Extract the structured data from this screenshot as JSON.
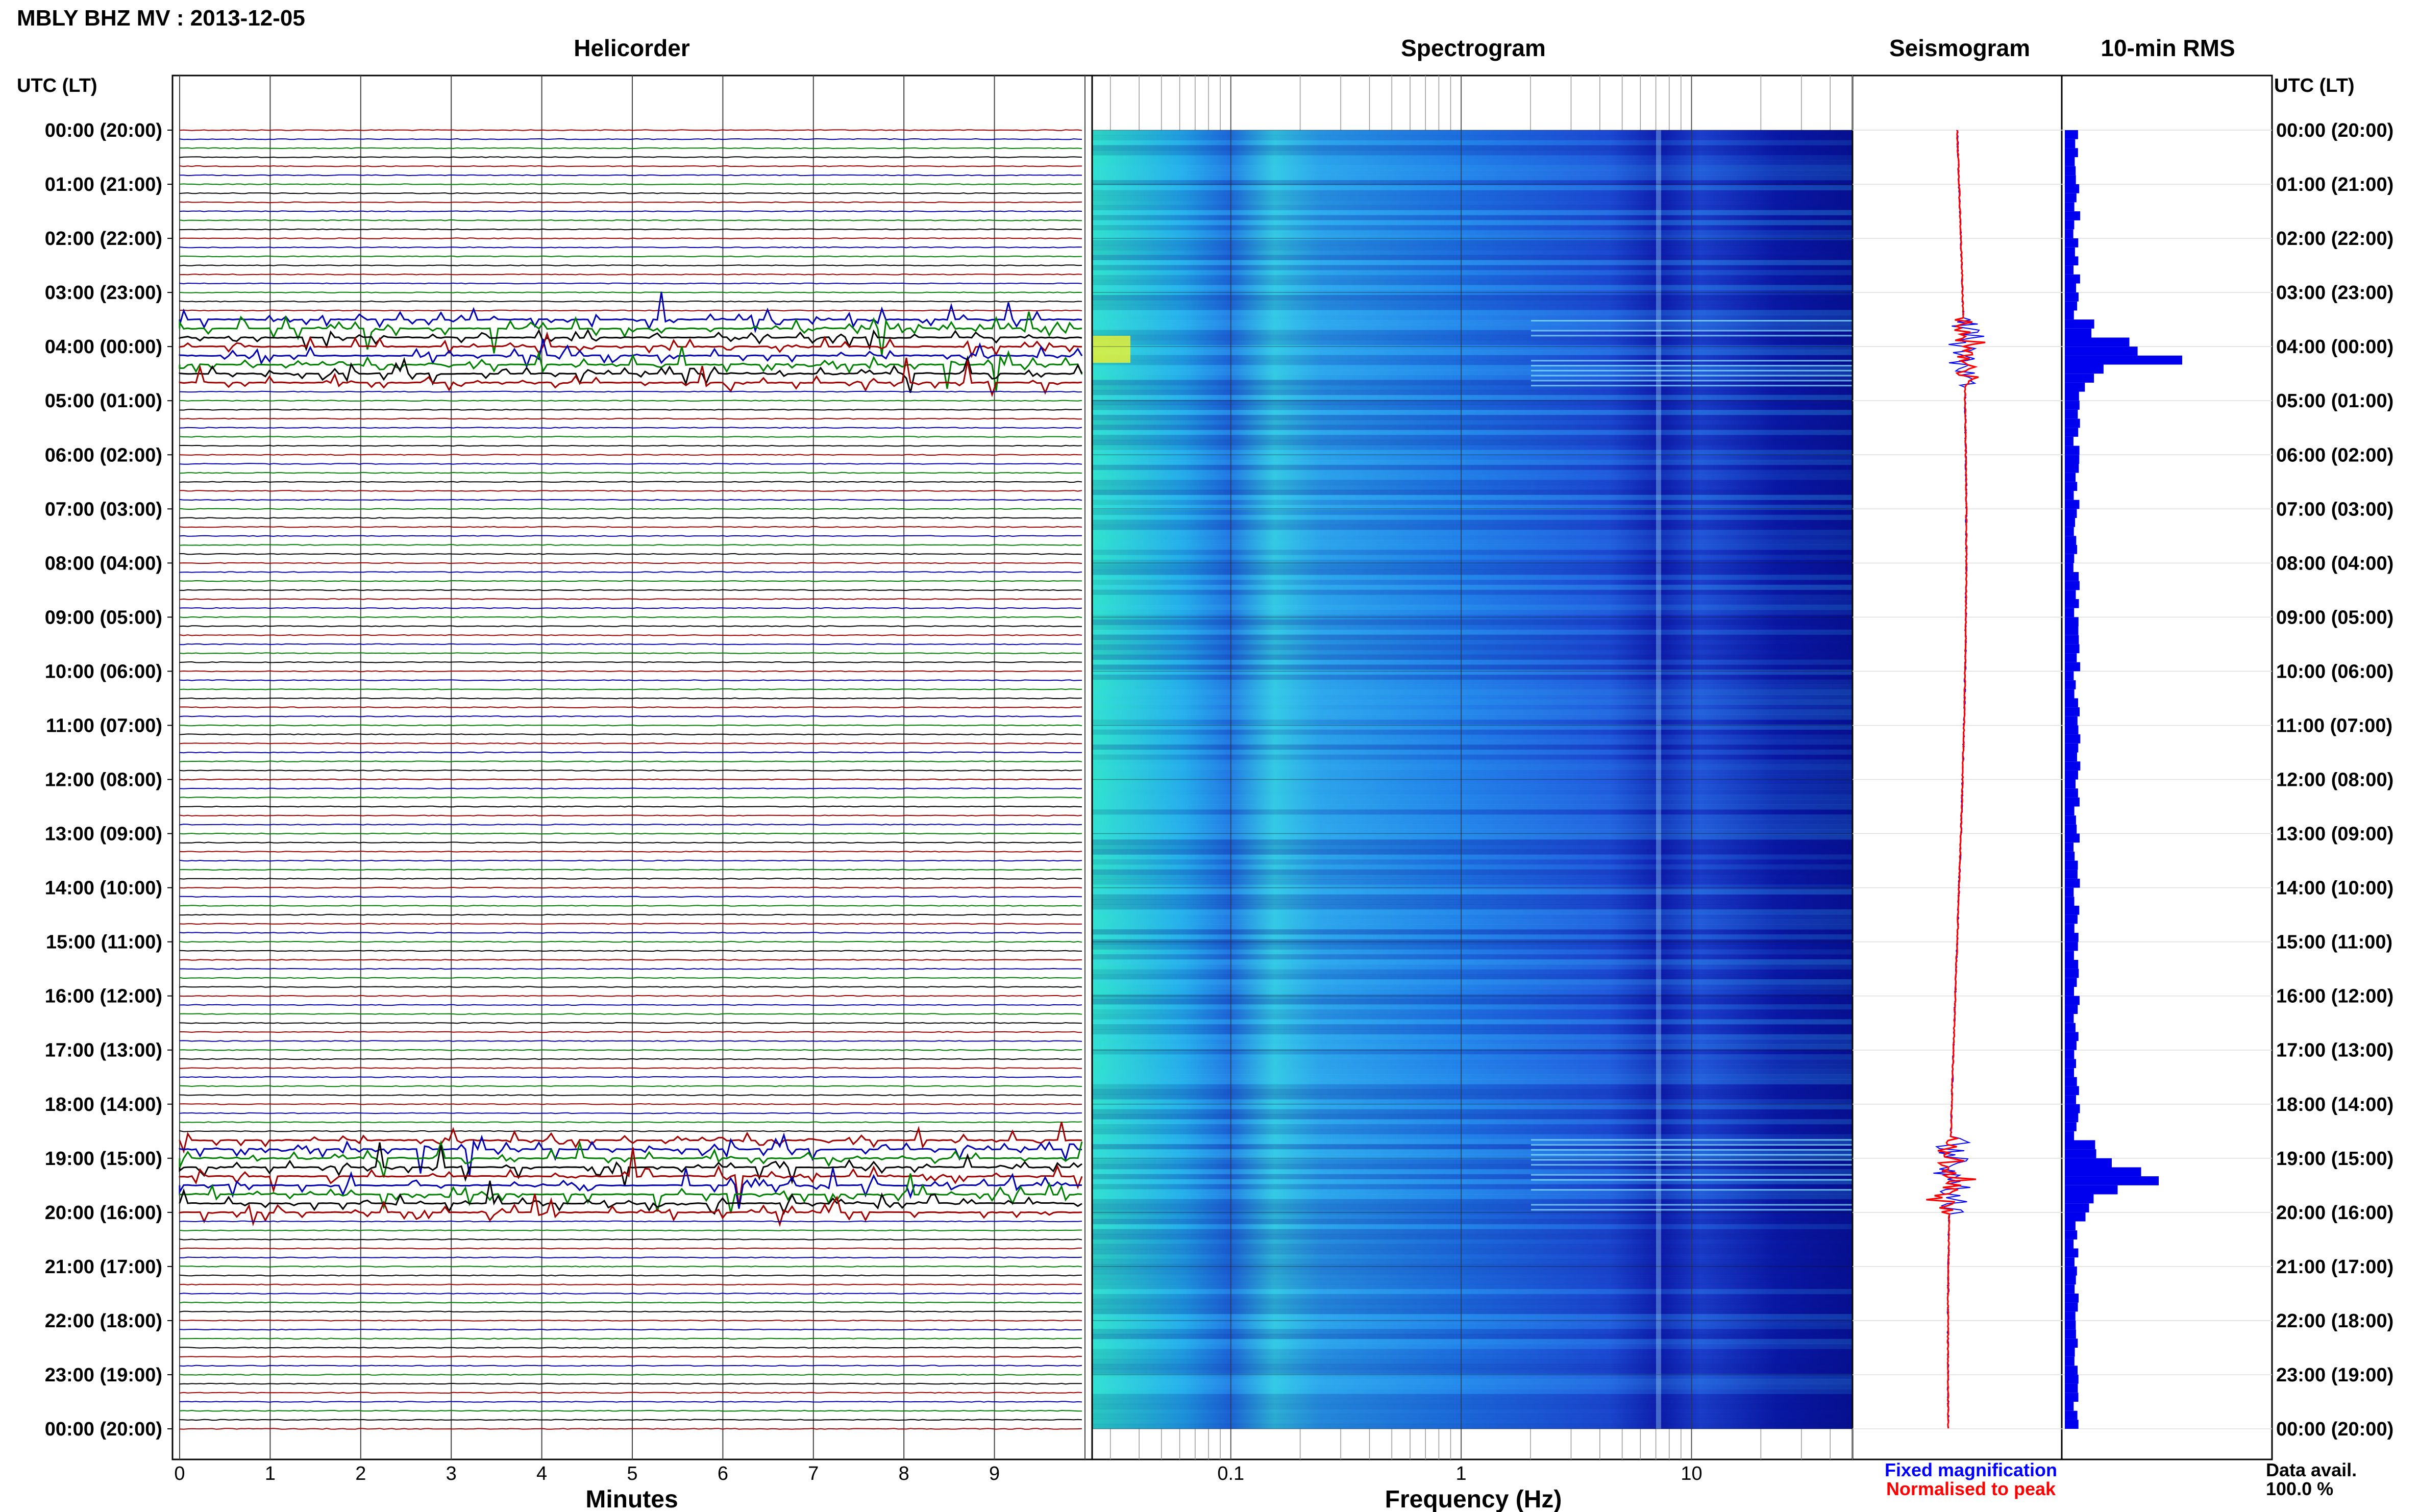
{
  "title": "MBLY BHZ MV : 2013-12-05",
  "time_label_left": "UTC (LT)",
  "time_label_right": "UTC (LT)",
  "time_ticks": [
    "00:00 (20:00)",
    "01:00 (21:00)",
    "02:00 (22:00)",
    "03:00 (23:00)",
    "04:00 (00:00)",
    "05:00 (01:00)",
    "06:00 (02:00)",
    "07:00 (03:00)",
    "08:00 (04:00)",
    "09:00 (05:00)",
    "10:00 (06:00)",
    "11:00 (07:00)",
    "12:00 (08:00)",
    "13:00 (09:00)",
    "14:00 (10:00)",
    "15:00 (11:00)",
    "16:00 (12:00)",
    "17:00 (13:00)",
    "18:00 (14:00)",
    "19:00 (15:00)",
    "20:00 (16:00)",
    "21:00 (17:00)",
    "22:00 (18:00)",
    "23:00 (19:00)",
    "00:00 (20:00)"
  ],
  "legend": {
    "fixed": "Fixed magnification",
    "normalised": "Normalised to peak"
  },
  "data_avail": {
    "label": "Data avail.",
    "value": "100.0 %"
  },
  "colors": {
    "trace_cycle": [
      "#a00000",
      "#0000b0",
      "#008000",
      "#000000"
    ],
    "fixed": "#0000ff",
    "normalised": "#ff0000",
    "rms": "#0000ee"
  },
  "chart_data": [
    {
      "type": "line",
      "title": "Helicorder",
      "xlabel": "Minutes",
      "xticks": [
        "0",
        "1",
        "2",
        "3",
        "4",
        "5",
        "6",
        "7",
        "8",
        "9"
      ],
      "xlim": [
        0,
        10
      ],
      "rows_per_hour": 6,
      "hours": 24,
      "event_windows_utc": [
        [
          3.5,
          4.75
        ],
        [
          18.6,
          20.0
        ]
      ]
    },
    {
      "type": "heatmap",
      "title": "Spectrogram",
      "xlabel": "Frequency (Hz)",
      "xscale": "log",
      "xticks": [
        "0.1",
        "1",
        "10"
      ],
      "xlim": [
        0.025,
        50
      ]
    },
    {
      "type": "line",
      "title": "Seismogram",
      "series": [
        {
          "name": "Fixed magnification"
        },
        {
          "name": "Normalised to peak"
        }
      ]
    },
    {
      "type": "bar",
      "title": "10-min RMS",
      "orientation": "horizontal",
      "bin_minutes": 10,
      "peaks": [
        {
          "utc_hour": 3.83,
          "value": 0.55
        },
        {
          "utc_hour": 4.0,
          "value": 0.62
        },
        {
          "utc_hour": 4.17,
          "value": 1.0
        },
        {
          "utc_hour": 4.33,
          "value": 0.33
        },
        {
          "utc_hour": 19.0,
          "value": 0.4
        },
        {
          "utc_hour": 19.17,
          "value": 0.65
        },
        {
          "utc_hour": 19.33,
          "value": 0.8
        },
        {
          "utc_hour": 19.5,
          "value": 0.45
        }
      ],
      "baseline": 0.12
    }
  ]
}
